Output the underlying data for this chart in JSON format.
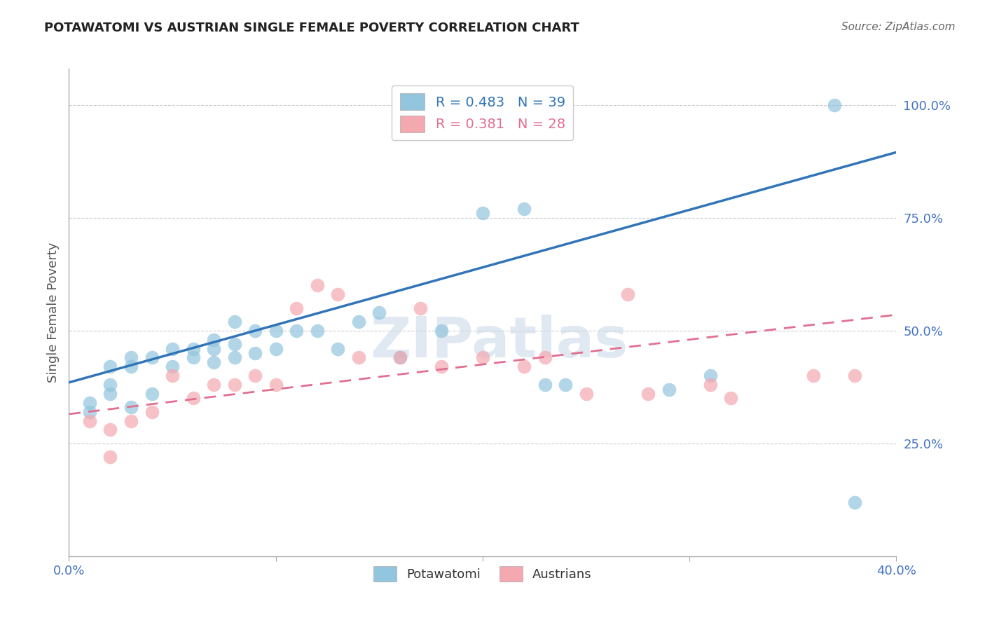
{
  "title": "POTAWATOMI VS AUSTRIAN SINGLE FEMALE POVERTY CORRELATION CHART",
  "source": "Source: ZipAtlas.com",
  "xlabel_label": "Potawatomi",
  "ylabel_label": "Single Female Poverty",
  "x_min": 0.0,
  "x_max": 0.4,
  "y_min": 0.0,
  "y_max": 1.08,
  "x_ticks": [
    0.0,
    0.1,
    0.2,
    0.3,
    0.4
  ],
  "x_tick_labels": [
    "0.0%",
    "",
    "",
    "",
    "40.0%"
  ],
  "y_ticks": [
    0.25,
    0.5,
    0.75,
    1.0
  ],
  "y_tick_labels": [
    "25.0%",
    "50.0%",
    "75.0%",
    "100.0%"
  ],
  "blue_R": 0.483,
  "blue_N": 39,
  "pink_R": 0.381,
  "pink_N": 28,
  "blue_color": "#92C5DE",
  "pink_color": "#F4A8B0",
  "blue_line_color": "#3175B8",
  "pink_line_color": "#E07090",
  "watermark": "ZIPatlas",
  "blue_scatter_x": [
    0.01,
    0.01,
    0.02,
    0.02,
    0.02,
    0.03,
    0.03,
    0.03,
    0.04,
    0.04,
    0.05,
    0.05,
    0.06,
    0.06,
    0.07,
    0.07,
    0.07,
    0.08,
    0.08,
    0.08,
    0.09,
    0.09,
    0.1,
    0.1,
    0.11,
    0.12,
    0.13,
    0.14,
    0.15,
    0.16,
    0.18,
    0.2,
    0.22,
    0.23,
    0.24,
    0.29,
    0.31,
    0.37,
    0.38
  ],
  "blue_scatter_y": [
    0.32,
    0.34,
    0.36,
    0.38,
    0.42,
    0.33,
    0.42,
    0.44,
    0.36,
    0.44,
    0.42,
    0.46,
    0.44,
    0.46,
    0.43,
    0.46,
    0.48,
    0.44,
    0.47,
    0.52,
    0.45,
    0.5,
    0.46,
    0.5,
    0.5,
    0.5,
    0.46,
    0.52,
    0.54,
    0.44,
    0.5,
    0.76,
    0.77,
    0.38,
    0.38,
    0.37,
    0.4,
    1.0,
    0.12
  ],
  "pink_scatter_x": [
    0.01,
    0.02,
    0.02,
    0.03,
    0.04,
    0.05,
    0.06,
    0.07,
    0.08,
    0.09,
    0.1,
    0.11,
    0.12,
    0.13,
    0.14,
    0.16,
    0.17,
    0.18,
    0.2,
    0.22,
    0.23,
    0.25,
    0.27,
    0.28,
    0.31,
    0.32,
    0.36,
    0.38
  ],
  "pink_scatter_y": [
    0.3,
    0.22,
    0.28,
    0.3,
    0.32,
    0.4,
    0.35,
    0.38,
    0.38,
    0.4,
    0.38,
    0.55,
    0.6,
    0.58,
    0.44,
    0.44,
    0.55,
    0.42,
    0.44,
    0.42,
    0.44,
    0.36,
    0.58,
    0.36,
    0.38,
    0.35,
    0.4,
    0.4
  ],
  "blue_line_x0": 0.0,
  "blue_line_y0": 0.385,
  "blue_line_x1": 0.4,
  "blue_line_y1": 0.895,
  "pink_line_x0": 0.0,
  "pink_line_y0": 0.315,
  "pink_line_x1": 0.4,
  "pink_line_y1": 0.535,
  "legend_blue_label": "R = 0.483   N = 39",
  "legend_pink_label": "R = 0.381   N = 28",
  "tick_color": "#4472C4",
  "axis_label_color": "#555555",
  "grid_color": "#CCCCCC",
  "spine_color": "#AAAAAA"
}
